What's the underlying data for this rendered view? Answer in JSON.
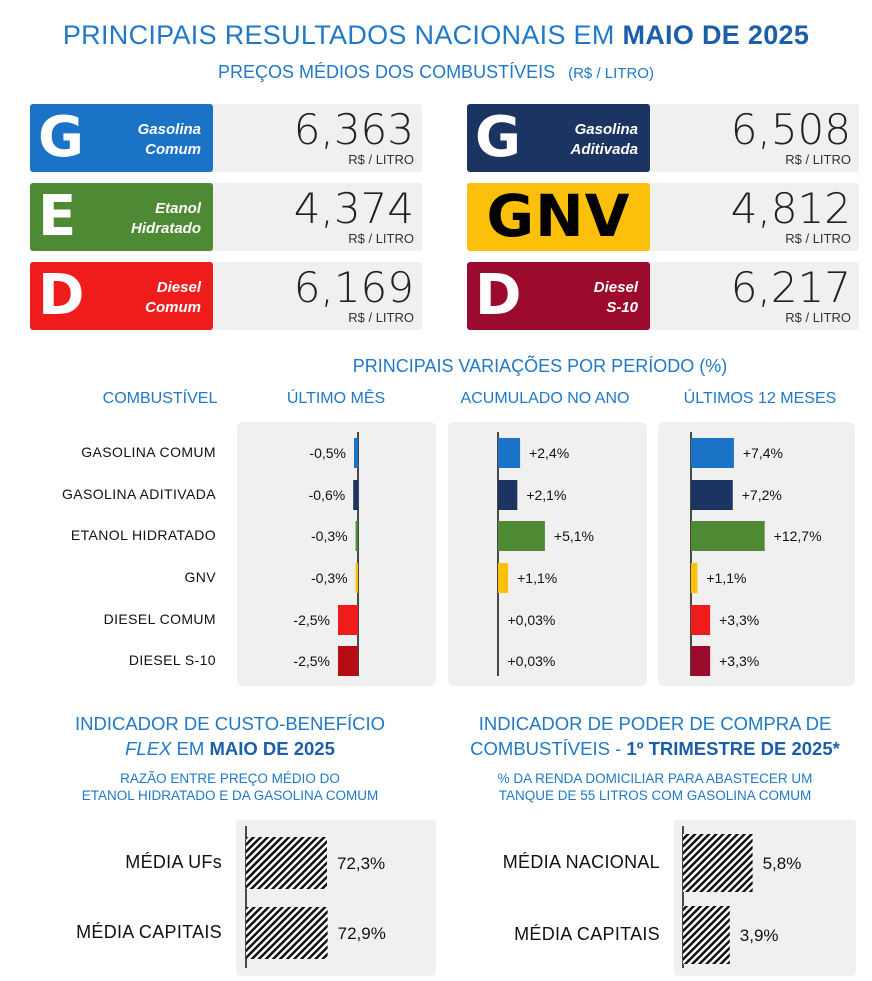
{
  "header": {
    "title_prefix": "PRINCIPAIS RESULTADOS NACIONAIS EM",
    "title_strong": "MAIO DE 2025",
    "subtitle": "PREÇOS MÉDIOS DOS COMBUSTÍVEIS",
    "subtitle_unit": "(R$ / LITRO)"
  },
  "prices": [
    {
      "letter": "G",
      "name1": "Gasolina",
      "name2": "Comum",
      "value": "6,363",
      "unit": "R$ / LITRO",
      "color": "#1a73c6"
    },
    {
      "letter": "G",
      "name1": "Gasolina",
      "name2": "Aditivada",
      "value": "6,508",
      "unit": "R$ / LITRO",
      "color": "#1c3461"
    },
    {
      "letter": "E",
      "name1": "Etanol",
      "name2": "Hidratado",
      "value": "4,374",
      "unit": "R$ / LITRO",
      "color": "#4e8a33"
    },
    {
      "letter": "GNV",
      "name1": "",
      "name2": "",
      "value": "4,812",
      "unit": "R$ / LITRO",
      "color": "#fdc00a"
    },
    {
      "letter": "D",
      "name1": "Diesel",
      "name2": "Comum",
      "value": "6,169",
      "unit": "R$ / LITRO",
      "color": "#f01c1c"
    },
    {
      "letter": "D",
      "name1": "Diesel",
      "name2": "S-10",
      "value": "6,217",
      "unit": "R$ / LITRO",
      "color": "#9c0a2e"
    }
  ],
  "variations": {
    "title": "PRINCIPAIS VARIAÇÕES POR PERÍODO (%)",
    "headers": {
      "fuel": "COMBUSTÍVEL",
      "month": "ÚLTIMO MÊS",
      "year": "ACUMULADO NO ANO",
      "twelve": "ÚLTIMOS 12 MESES"
    }
  },
  "chart_data": [
    {
      "type": "bar",
      "orientation": "horizontal",
      "categories": [
        "GASOLINA COMUM",
        "GASOLINA ADITIVADA",
        "ETANOL HIDRATADO",
        "GNV",
        "DIESEL COMUM",
        "DIESEL  S-10"
      ],
      "colors": [
        "#1a73c6",
        "#1c3461",
        "#4e8a33",
        "#fdc00a",
        "#f01c1c",
        "#b50d12"
      ],
      "series": [
        {
          "name": "ÚLTIMO MÊS",
          "values": [
            -0.5,
            -0.6,
            -0.3,
            -0.3,
            -2.5,
            -2.5
          ],
          "labels": [
            "-0,5%",
            "-0,6%",
            "-0,3%",
            "-0,3%",
            "-2,5%",
            "-2,5%"
          ]
        },
        {
          "name": "ACUMULADO NO ANO",
          "values": [
            2.4,
            2.1,
            5.1,
            1.1,
            0.03,
            0.03
          ],
          "labels": [
            "+2,4%",
            "+2,1%",
            "+5,1%",
            "+1,1%",
            "+0,03%",
            "+0,03%"
          ]
        },
        {
          "name": "ÚLTIMOS 12 MESES",
          "values": [
            7.4,
            7.2,
            12.7,
            1.1,
            3.3,
            3.3
          ],
          "labels": [
            "+7,4%",
            "+7,2%",
            "+12,7%",
            "+1,1%",
            "+3,3%",
            "+3,3%"
          ]
        }
      ],
      "colors_12m": [
        "#1a73c6",
        "#1c3461",
        "#4e8a33",
        "#fdc00a",
        "#f01c1c",
        "#9c0a2e"
      ]
    },
    {
      "type": "bar",
      "orientation": "horizontal",
      "title_prefix": "INDICADOR DE CUSTO-BENEFÍCIO",
      "title_italic": "FLEX",
      "title_mid": "EM",
      "title_strong": "MAIO DE 2025",
      "subtitle1": "RAZÃO ENTRE PREÇO MÉDIO DO",
      "subtitle2": "ETANOL HIDRATADO E DA GASOLINA COMUM",
      "categories": [
        "MÉDIA UFs",
        "MÉDIA CAPITAIS"
      ],
      "values": [
        72.3,
        72.9
      ],
      "labels": [
        "72,3%",
        "72,9%"
      ]
    },
    {
      "type": "bar",
      "orientation": "horizontal",
      "title1": "INDICADOR DE PODER DE COMPRA DE",
      "title2_prefix": "COMBUSTÍVEIS -",
      "title2_strong": "1º TRIMESTRE DE 2025*",
      "subtitle1": "% DA RENDA DOMICILIAR PARA ABASTECER UM",
      "subtitle2": "TANQUE DE 55 LITROS COM GASOLINA COMUM",
      "categories": [
        "MÉDIA NACIONAL",
        "MÉDIA CAPITAIS"
      ],
      "values": [
        5.8,
        3.9
      ],
      "labels": [
        "5,8%",
        "3,9%"
      ]
    }
  ]
}
